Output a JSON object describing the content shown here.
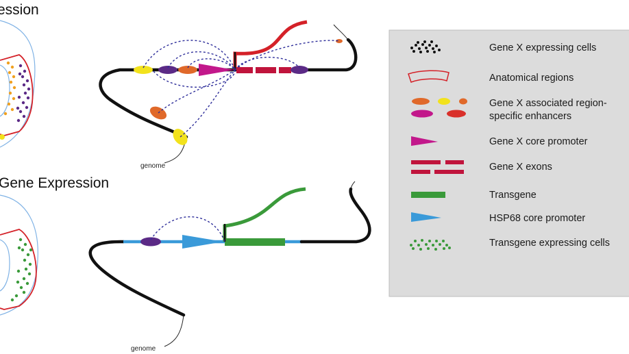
{
  "titles": {
    "top": "ession",
    "bottom": "Gene Expression"
  },
  "genome_labels": {
    "top": "genome",
    "bottom": "genome"
  },
  "legend": {
    "items": [
      {
        "id": "gene-x-expressing-cells",
        "lines": [
          "Gene X expressing cells"
        ]
      },
      {
        "id": "anatomical-regions",
        "lines": [
          "Anatomical regions"
        ]
      },
      {
        "id": "enhancers",
        "lines": [
          "Gene X associated region-",
          "specific enhancers"
        ]
      },
      {
        "id": "core-promoter",
        "lines": [
          "Gene X core promoter"
        ]
      },
      {
        "id": "exons",
        "lines": [
          "Gene X exons"
        ]
      },
      {
        "id": "transgene",
        "lines": [
          "Transgene"
        ]
      },
      {
        "id": "hsp68-promoter",
        "lines": [
          "HSP68 core promoter"
        ]
      },
      {
        "id": "transgene-cells",
        "lines": [
          "Transgene expressing cells"
        ]
      }
    ]
  },
  "colors": {
    "legend_bg": "#dcdcdc",
    "red": "#d42128",
    "crimson": "#c0143c",
    "magenta": "#c2188b",
    "purple": "#5b2a86",
    "orange": "#e0692a",
    "yellow": "#f2e21c",
    "green": "#3a9a3a",
    "blue": "#3a9ad9",
    "dotted": "#2e2e9a"
  }
}
